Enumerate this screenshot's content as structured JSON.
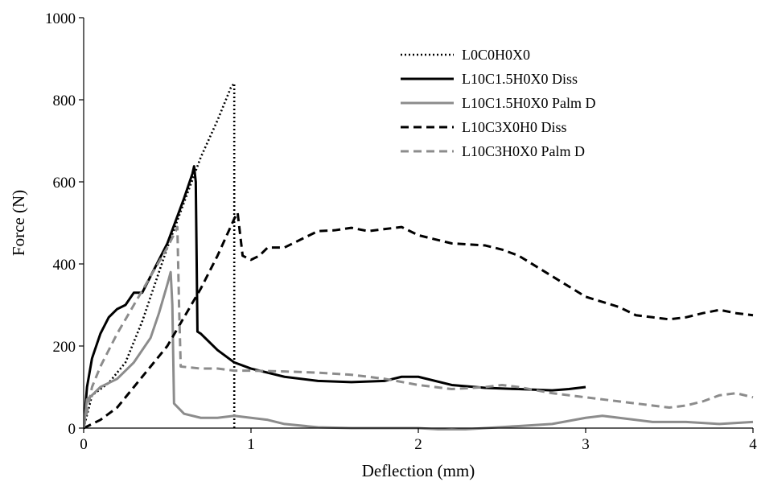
{
  "chart_data": {
    "type": "line",
    "title": "",
    "xlabel": "Deflection (mm)",
    "ylabel": "Force (N)",
    "xlim": [
      0,
      4
    ],
    "ylim": [
      0,
      1000
    ],
    "xticks": [
      "0",
      "1",
      "2",
      "3",
      "4"
    ],
    "yticks": [
      "0",
      "200",
      "400",
      "600",
      "800",
      "1000"
    ],
    "grid": false,
    "legend_position": "top-right",
    "series": [
      {
        "name": "L0C0H0X0",
        "color": "#000000",
        "dash": "dotted",
        "points": [
          [
            0,
            0
          ],
          [
            0.05,
            80
          ],
          [
            0.15,
            110
          ],
          [
            0.25,
            160
          ],
          [
            0.35,
            260
          ],
          [
            0.5,
            440
          ],
          [
            0.6,
            550
          ],
          [
            0.7,
            660
          ],
          [
            0.8,
            750
          ],
          [
            0.88,
            830
          ],
          [
            0.9,
            840
          ],
          [
            0.9,
            0
          ]
        ]
      },
      {
        "name": "L10C1.5H0X0 Diss",
        "color": "#000000",
        "dash": "solid",
        "points": [
          [
            0,
            0
          ],
          [
            0.02,
            100
          ],
          [
            0.05,
            170
          ],
          [
            0.1,
            230
          ],
          [
            0.15,
            270
          ],
          [
            0.2,
            290
          ],
          [
            0.25,
            300
          ],
          [
            0.3,
            330
          ],
          [
            0.35,
            330
          ],
          [
            0.4,
            370
          ],
          [
            0.5,
            450
          ],
          [
            0.6,
            560
          ],
          [
            0.65,
            620
          ],
          [
            0.66,
            638
          ],
          [
            0.67,
            600
          ],
          [
            0.68,
            235
          ],
          [
            0.7,
            230
          ],
          [
            0.8,
            190
          ],
          [
            0.9,
            160
          ],
          [
            1.0,
            145
          ],
          [
            1.2,
            125
          ],
          [
            1.4,
            115
          ],
          [
            1.6,
            112
          ],
          [
            1.8,
            115
          ],
          [
            1.9,
            125
          ],
          [
            2.0,
            125
          ],
          [
            2.2,
            105
          ],
          [
            2.4,
            98
          ],
          [
            2.6,
            95
          ],
          [
            2.8,
            92
          ],
          [
            2.9,
            95
          ],
          [
            3.0,
            100
          ]
        ]
      },
      {
        "name": "L10C1.5H0X0 Palm D",
        "color": "#8c8c8c",
        "dash": "solid",
        "points": [
          [
            0,
            0
          ],
          [
            0.02,
            70
          ],
          [
            0.05,
            80
          ],
          [
            0.1,
            100
          ],
          [
            0.2,
            120
          ],
          [
            0.3,
            160
          ],
          [
            0.4,
            220
          ],
          [
            0.45,
            280
          ],
          [
            0.5,
            350
          ],
          [
            0.52,
            380
          ],
          [
            0.53,
            300
          ],
          [
            0.54,
            60
          ],
          [
            0.6,
            35
          ],
          [
            0.7,
            25
          ],
          [
            0.8,
            25
          ],
          [
            0.9,
            30
          ],
          [
            1.0,
            25
          ],
          [
            1.1,
            20
          ],
          [
            1.2,
            10
          ],
          [
            1.4,
            2
          ],
          [
            1.6,
            0
          ],
          [
            1.8,
            0
          ],
          [
            2.0,
            0
          ],
          [
            2.2,
            -5
          ],
          [
            2.4,
            0
          ],
          [
            2.6,
            5
          ],
          [
            2.8,
            10
          ],
          [
            3.0,
            25
          ],
          [
            3.1,
            30
          ],
          [
            3.2,
            25
          ],
          [
            3.4,
            15
          ],
          [
            3.6,
            15
          ],
          [
            3.8,
            10
          ],
          [
            4.0,
            15
          ]
        ]
      },
      {
        "name": "L10C3X0H0 Diss",
        "color": "#000000",
        "dash": "dashed",
        "points": [
          [
            0,
            0
          ],
          [
            0.1,
            20
          ],
          [
            0.2,
            50
          ],
          [
            0.3,
            100
          ],
          [
            0.4,
            150
          ],
          [
            0.5,
            200
          ],
          [
            0.6,
            270
          ],
          [
            0.7,
            340
          ],
          [
            0.8,
            420
          ],
          [
            0.9,
            510
          ],
          [
            0.92,
            525
          ],
          [
            0.95,
            420
          ],
          [
            1.0,
            410
          ],
          [
            1.05,
            420
          ],
          [
            1.1,
            440
          ],
          [
            1.2,
            440
          ],
          [
            1.3,
            460
          ],
          [
            1.4,
            480
          ],
          [
            1.5,
            482
          ],
          [
            1.6,
            488
          ],
          [
            1.7,
            480
          ],
          [
            1.8,
            485
          ],
          [
            1.9,
            490
          ],
          [
            2.0,
            470
          ],
          [
            2.1,
            460
          ],
          [
            2.2,
            450
          ],
          [
            2.4,
            445
          ],
          [
            2.5,
            435
          ],
          [
            2.6,
            420
          ],
          [
            2.8,
            370
          ],
          [
            3.0,
            320
          ],
          [
            3.2,
            295
          ],
          [
            3.3,
            275
          ],
          [
            3.4,
            270
          ],
          [
            3.5,
            265
          ],
          [
            3.6,
            270
          ],
          [
            3.7,
            280
          ],
          [
            3.8,
            288
          ],
          [
            3.9,
            280
          ],
          [
            4.0,
            275
          ]
        ]
      },
      {
        "name": "L10C3H0X0 Palm D",
        "color": "#8c8c8c",
        "dash": "dashed",
        "points": [
          [
            0,
            0
          ],
          [
            0.05,
            100
          ],
          [
            0.1,
            150
          ],
          [
            0.2,
            230
          ],
          [
            0.3,
            300
          ],
          [
            0.4,
            370
          ],
          [
            0.5,
            440
          ],
          [
            0.55,
            480
          ],
          [
            0.56,
            490
          ],
          [
            0.57,
            300
          ],
          [
            0.58,
            150
          ],
          [
            0.7,
            145
          ],
          [
            0.8,
            145
          ],
          [
            0.9,
            140
          ],
          [
            1.0,
            140
          ],
          [
            1.2,
            138
          ],
          [
            1.4,
            135
          ],
          [
            1.6,
            130
          ],
          [
            1.8,
            120
          ],
          [
            2.0,
            105
          ],
          [
            2.2,
            95
          ],
          [
            2.4,
            100
          ],
          [
            2.5,
            105
          ],
          [
            2.6,
            100
          ],
          [
            2.8,
            85
          ],
          [
            3.0,
            75
          ],
          [
            3.2,
            65
          ],
          [
            3.4,
            55
          ],
          [
            3.5,
            50
          ],
          [
            3.6,
            55
          ],
          [
            3.7,
            65
          ],
          [
            3.8,
            80
          ],
          [
            3.9,
            85
          ],
          [
            4.0,
            75
          ]
        ]
      }
    ]
  }
}
